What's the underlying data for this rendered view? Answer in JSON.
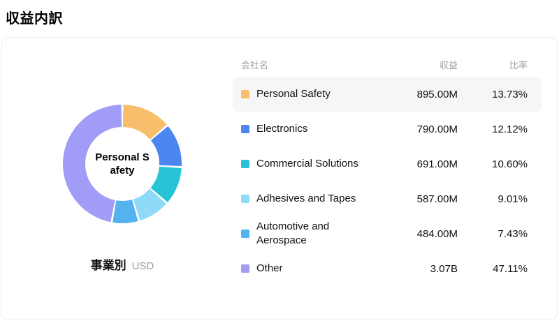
{
  "page_title": "収益内訳",
  "chart_data": {
    "type": "pie",
    "donut": true,
    "title": "事業別",
    "unit": "USD",
    "center_label": "Personal S\nafety",
    "start_angle_deg": -90,
    "legend_position": "right-table",
    "categories": [
      "Personal Safety",
      "Electronics",
      "Commercial Solutions",
      "Adhesives and Tapes",
      "Automotive and Aerospace",
      "Other"
    ],
    "values": [
      13.73,
      12.12,
      10.6,
      9.01,
      7.43,
      47.11
    ],
    "revenues": [
      "895.00M",
      "790.00M",
      "691.00M",
      "587.00M",
      "484.00M",
      "3.07B"
    ],
    "colors": [
      "#F9BE6C",
      "#4C86F0",
      "#28C4D5",
      "#8FD9F9",
      "#54B2EF",
      "#A19CF5"
    ]
  },
  "table": {
    "headers": {
      "name": "会社名",
      "revenue": "収益",
      "ratio": "比率"
    },
    "rows": [
      {
        "name": "Personal Safety",
        "revenue": "895.00M",
        "ratio": "13.73%",
        "color": "#F9BE6C",
        "highlighted": true
      },
      {
        "name": "Electronics",
        "revenue": "790.00M",
        "ratio": "12.12%",
        "color": "#4C86F0",
        "highlighted": false
      },
      {
        "name": "Commercial Solutions",
        "revenue": "691.00M",
        "ratio": "10.60%",
        "color": "#28C4D5",
        "highlighted": false
      },
      {
        "name": "Adhesives and Tapes",
        "revenue": "587.00M",
        "ratio": "9.01%",
        "color": "#8FD9F9",
        "highlighted": false
      },
      {
        "name": "Automotive and Aerospace",
        "revenue": "484.00M",
        "ratio": "7.43%",
        "color": "#54B2EF",
        "highlighted": false
      },
      {
        "name": "Other",
        "revenue": "3.07B",
        "ratio": "47.11%",
        "color": "#A19CF5",
        "highlighted": false
      }
    ]
  },
  "caption": {
    "label": "事業別",
    "unit": "USD"
  }
}
